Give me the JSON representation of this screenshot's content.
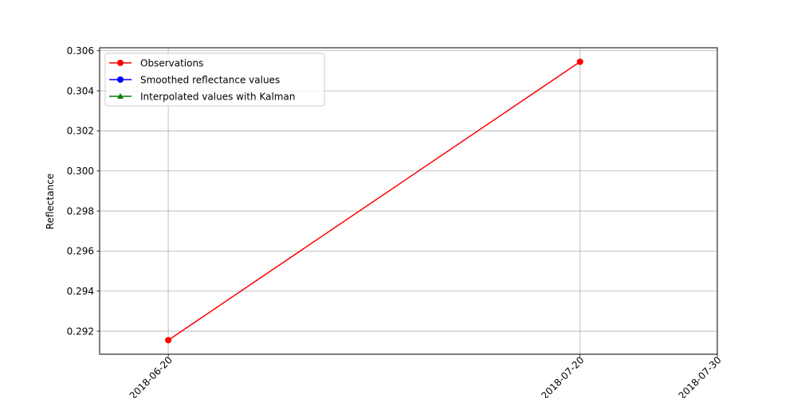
{
  "chart_data": {
    "type": "line",
    "title": "",
    "xlabel": "",
    "ylabel": "Reflectance",
    "x_ticks": [
      "2018-06-20",
      "2018-07-20",
      "2018-07-30"
    ],
    "y_ticks": [
      "0.292",
      "0.294",
      "0.296",
      "0.298",
      "0.300",
      "0.302",
      "0.304",
      "0.306"
    ],
    "xlim": [
      "2018-06-15",
      "2018-07-30"
    ],
    "ylim": [
      0.29085,
      0.30615
    ],
    "grid": true,
    "legend_position": "top-left",
    "series": [
      {
        "name": "Observations",
        "color": "#ff0000",
        "marker": "circle",
        "x": [
          "2018-06-20",
          "2018-07-20"
        ],
        "y": [
          0.29155,
          0.30545
        ]
      },
      {
        "name": "Smoothed reflectance values",
        "color": "#0000ff",
        "marker": "circle",
        "x": [],
        "y": []
      },
      {
        "name": "Interpolated values with Kalman",
        "color": "#008000",
        "marker": "triangle",
        "x": [],
        "y": []
      }
    ]
  }
}
